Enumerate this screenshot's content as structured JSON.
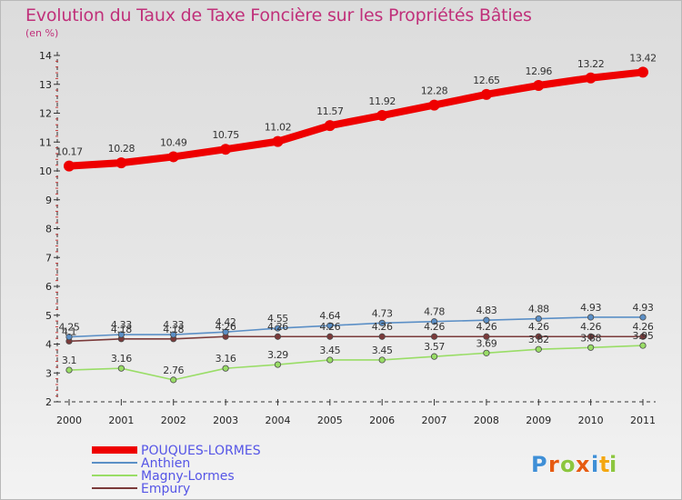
{
  "title": "Evolution du Taux de Taxe Foncière sur les Propriétés Bâties",
  "subtitle": "(en %)",
  "logo": {
    "letters": [
      "P",
      "r",
      "o",
      "x",
      "i",
      "t",
      "i"
    ],
    "colors": [
      "#3f8fd6",
      "#e65b12",
      "#8cc63f",
      "#e65b12",
      "#3f8fd6",
      "#f3a712",
      "#8cc63f"
    ]
  },
  "chart_data": {
    "type": "line",
    "title": "Evolution du Taux de Taxe Foncière sur les Propriétés Bâties",
    "xlabel": "",
    "ylabel": "(en %)",
    "x": [
      "2000",
      "2001",
      "2002",
      "2003",
      "2004",
      "2005",
      "2006",
      "2007",
      "2008",
      "2009",
      "2010",
      "2011"
    ],
    "ylim": [
      2,
      14
    ],
    "yticks": [
      "2",
      "3",
      "4",
      "5",
      "6",
      "7",
      "8",
      "9",
      "10",
      "11",
      "12",
      "13",
      "14"
    ],
    "grid": false,
    "legend_position": "bottom-left",
    "series": [
      {
        "name": "POUQUES-LORMES",
        "color": "#ee0000",
        "values": [
          10.17,
          10.28,
          10.49,
          10.75,
          11.02,
          11.57,
          11.92,
          12.28,
          12.65,
          12.96,
          13.22,
          13.42
        ],
        "labels": [
          "10.17",
          "10.28",
          "10.49",
          "10.75",
          "11.02",
          "11.57",
          "11.92",
          "12.28",
          "12.65",
          "12.96",
          "13.22",
          "13.42"
        ]
      },
      {
        "name": "Anthien",
        "color": "#5b8fc6",
        "values": [
          4.25,
          4.33,
          4.33,
          4.42,
          4.55,
          4.64,
          4.73,
          4.78,
          4.83,
          4.88,
          4.93,
          4.93
        ],
        "labels": [
          "4.25",
          "4.33",
          "4.33",
          "4.42",
          "4.55",
          "4.64",
          "4.73",
          "4.78",
          "4.83",
          "4.88",
          "4.93",
          "4.93"
        ]
      },
      {
        "name": "Magny-Lormes",
        "color": "#99dd66",
        "values": [
          3.1,
          3.16,
          2.76,
          3.16,
          3.29,
          3.45,
          3.45,
          3.57,
          3.69,
          3.82,
          3.88,
          3.95
        ],
        "labels": [
          "3.1",
          "3.16",
          "2.76",
          "3.16",
          "3.29",
          "3.45",
          "3.45",
          "3.57",
          "3.69",
          "3.82",
          "3.88",
          "3.95"
        ]
      },
      {
        "name": "Empury",
        "color": "#7a3a3a",
        "values": [
          4.1,
          4.18,
          4.18,
          4.26,
          4.26,
          4.26,
          4.26,
          4.26,
          4.26,
          4.26,
          4.26,
          4.26
        ],
        "labels": [
          "4.1",
          "4.18",
          "4.18",
          "4.26",
          "4.26",
          "4.26",
          "4.26",
          "4.26",
          "4.26",
          "4.26",
          "4.26",
          "4.26"
        ]
      }
    ]
  }
}
